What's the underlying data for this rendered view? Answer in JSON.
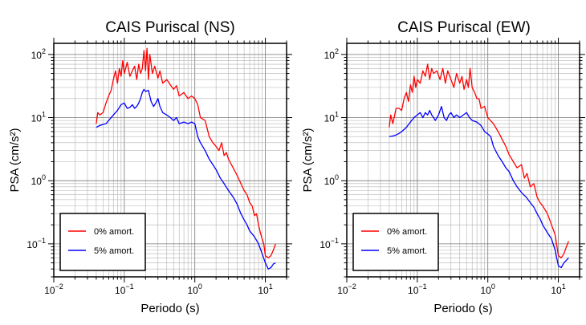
{
  "chart_data": [
    {
      "type": "line",
      "title": "CAIS Puriscal (NS)",
      "xlabel": "Periodo (s)",
      "ylabel": "PSA (cm/s²)",
      "xscale": "log",
      "yscale": "log",
      "xlim": [
        0.01,
        20
      ],
      "ylim": [
        0.03,
        150
      ],
      "x_ticks": [
        {
          "value": 0.01,
          "base": "10",
          "exp": "−2"
        },
        {
          "value": 0.1,
          "base": "10",
          "exp": "−1"
        },
        {
          "value": 1,
          "base": "10",
          "exp": "0"
        },
        {
          "value": 10,
          "base": "10",
          "exp": "1"
        }
      ],
      "y_ticks": [
        {
          "value": 0.1,
          "base": "10",
          "exp": "−1"
        },
        {
          "value": 1,
          "base": "10",
          "exp": "0"
        },
        {
          "value": 10,
          "base": "10",
          "exp": "1"
        },
        {
          "value": 100,
          "base": "10",
          "exp": "2"
        }
      ],
      "grid": true,
      "legend_position": "bottom-left",
      "series": [
        {
          "name": "0% amort.",
          "color": "#ff0000",
          "points": [
            [
              0.04,
              8
            ],
            [
              0.042,
              12
            ],
            [
              0.045,
              11
            ],
            [
              0.05,
              12
            ],
            [
              0.055,
              17
            ],
            [
              0.06,
              22
            ],
            [
              0.065,
              27
            ],
            [
              0.07,
              40
            ],
            [
              0.075,
              55
            ],
            [
              0.08,
              35
            ],
            [
              0.085,
              60
            ],
            [
              0.09,
              45
            ],
            [
              0.095,
              80
            ],
            [
              0.1,
              50
            ],
            [
              0.11,
              75
            ],
            [
              0.12,
              45
            ],
            [
              0.13,
              55
            ],
            [
              0.14,
              65
            ],
            [
              0.15,
              40
            ],
            [
              0.16,
              70
            ],
            [
              0.17,
              50
            ],
            [
              0.18,
              60
            ],
            [
              0.19,
              115
            ],
            [
              0.2,
              55
            ],
            [
              0.21,
              125
            ],
            [
              0.22,
              40
            ],
            [
              0.23,
              100
            ],
            [
              0.25,
              50
            ],
            [
              0.27,
              65
            ],
            [
              0.3,
              42
            ],
            [
              0.32,
              55
            ],
            [
              0.35,
              35
            ],
            [
              0.4,
              40
            ],
            [
              0.45,
              33
            ],
            [
              0.5,
              28
            ],
            [
              0.55,
              32
            ],
            [
              0.6,
              22
            ],
            [
              0.7,
              25
            ],
            [
              0.8,
              20
            ],
            [
              0.9,
              22
            ],
            [
              1.0,
              20
            ],
            [
              1.1,
              16
            ],
            [
              1.2,
              10
            ],
            [
              1.4,
              9
            ],
            [
              1.6,
              5
            ],
            [
              1.8,
              4
            ],
            [
              2.0,
              3.5
            ],
            [
              2.2,
              3
            ],
            [
              2.4,
              4
            ],
            [
              2.6,
              2.5
            ],
            [
              2.8,
              2.8
            ],
            [
              3.0,
              2.2
            ],
            [
              3.3,
              1.8
            ],
            [
              3.6,
              1.5
            ],
            [
              4.0,
              1.2
            ],
            [
              4.5,
              0.9
            ],
            [
              5,
              0.7
            ],
            [
              5.5,
              0.6
            ],
            [
              6,
              0.45
            ],
            [
              6.5,
              0.4
            ],
            [
              7,
              0.28
            ],
            [
              7.5,
              0.3
            ],
            [
              8,
              0.2
            ],
            [
              8.5,
              0.15
            ],
            [
              9,
              0.12
            ],
            [
              9.5,
              0.1
            ],
            [
              10,
              0.065
            ],
            [
              11,
              0.06
            ],
            [
              12,
              0.065
            ],
            [
              13,
              0.08
            ],
            [
              14,
              0.1
            ]
          ]
        },
        {
          "name": "5% amort.",
          "color": "#0000ff",
          "points": [
            [
              0.04,
              7
            ],
            [
              0.045,
              7.5
            ],
            [
              0.05,
              7.8
            ],
            [
              0.055,
              8
            ],
            [
              0.06,
              9
            ],
            [
              0.065,
              10
            ],
            [
              0.07,
              11
            ],
            [
              0.08,
              13
            ],
            [
              0.09,
              16
            ],
            [
              0.1,
              17
            ],
            [
              0.11,
              14
            ],
            [
              0.12,
              14.5
            ],
            [
              0.13,
              16
            ],
            [
              0.14,
              14
            ],
            [
              0.15,
              15
            ],
            [
              0.16,
              17
            ],
            [
              0.17,
              20
            ],
            [
              0.18,
              25
            ],
            [
              0.19,
              28
            ],
            [
              0.2,
              26
            ],
            [
              0.22,
              27
            ],
            [
              0.24,
              18
            ],
            [
              0.26,
              15
            ],
            [
              0.28,
              17
            ],
            [
              0.3,
              20
            ],
            [
              0.32,
              15
            ],
            [
              0.35,
              12
            ],
            [
              0.4,
              11
            ],
            [
              0.45,
              10
            ],
            [
              0.5,
              9
            ],
            [
              0.55,
              10
            ],
            [
              0.6,
              8
            ],
            [
              0.7,
              8.5
            ],
            [
              0.8,
              8
            ],
            [
              0.9,
              8.5
            ],
            [
              1.0,
              8
            ],
            [
              1.1,
              5
            ],
            [
              1.2,
              4
            ],
            [
              1.4,
              3
            ],
            [
              1.6,
              2.2
            ],
            [
              1.8,
              1.8
            ],
            [
              2.0,
              1.5
            ],
            [
              2.3,
              1.1
            ],
            [
              2.6,
              0.9
            ],
            [
              3.0,
              0.7
            ],
            [
              3.5,
              0.55
            ],
            [
              4.0,
              0.42
            ],
            [
              4.5,
              0.3
            ],
            [
              5,
              0.24
            ],
            [
              5.5,
              0.2
            ],
            [
              6,
              0.16
            ],
            [
              7,
              0.13
            ],
            [
              8,
              0.1
            ],
            [
              9,
              0.07
            ],
            [
              10,
              0.05
            ],
            [
              11,
              0.04
            ],
            [
              12,
              0.042
            ],
            [
              13,
              0.048
            ],
            [
              14,
              0.05
            ]
          ]
        }
      ]
    },
    {
      "type": "line",
      "title": "CAIS Puriscal (EW)",
      "xlabel": "Periodo (s)",
      "ylabel": "PSA (cm/s²)",
      "xscale": "log",
      "yscale": "log",
      "xlim": [
        0.01,
        20
      ],
      "ylim": [
        0.03,
        150
      ],
      "x_ticks": [
        {
          "value": 0.01,
          "base": "10",
          "exp": "−2"
        },
        {
          "value": 0.1,
          "base": "10",
          "exp": "−1"
        },
        {
          "value": 1,
          "base": "10",
          "exp": "0"
        },
        {
          "value": 10,
          "base": "10",
          "exp": "1"
        }
      ],
      "y_ticks": [
        {
          "value": 0.1,
          "base": "10",
          "exp": "−1"
        },
        {
          "value": 1,
          "base": "10",
          "exp": "0"
        },
        {
          "value": 10,
          "base": "10",
          "exp": "1"
        },
        {
          "value": 100,
          "base": "10",
          "exp": "2"
        }
      ],
      "grid": true,
      "legend_position": "bottom-left",
      "series": [
        {
          "name": "0% amort.",
          "color": "#ff0000",
          "points": [
            [
              0.04,
              7
            ],
            [
              0.042,
              11
            ],
            [
              0.045,
              8
            ],
            [
              0.05,
              14
            ],
            [
              0.055,
              14
            ],
            [
              0.06,
              13
            ],
            [
              0.065,
              20
            ],
            [
              0.07,
              25
            ],
            [
              0.075,
              18
            ],
            [
              0.08,
              33
            ],
            [
              0.085,
              25
            ],
            [
              0.09,
              45
            ],
            [
              0.095,
              30
            ],
            [
              0.1,
              40
            ],
            [
              0.11,
              35
            ],
            [
              0.12,
              55
            ],
            [
              0.13,
              45
            ],
            [
              0.14,
              70
            ],
            [
              0.15,
              40
            ],
            [
              0.16,
              60
            ],
            [
              0.17,
              50
            ],
            [
              0.19,
              55
            ],
            [
              0.21,
              40
            ],
            [
              0.23,
              60
            ],
            [
              0.25,
              35
            ],
            [
              0.27,
              55
            ],
            [
              0.3,
              40
            ],
            [
              0.33,
              30
            ],
            [
              0.36,
              50
            ],
            [
              0.4,
              35
            ],
            [
              0.43,
              45
            ],
            [
              0.46,
              28
            ],
            [
              0.5,
              40
            ],
            [
              0.53,
              30
            ],
            [
              0.56,
              60
            ],
            [
              0.6,
              30
            ],
            [
              0.65,
              25
            ],
            [
              0.7,
              20
            ],
            [
              0.75,
              20
            ],
            [
              0.8,
              14
            ],
            [
              0.9,
              15
            ],
            [
              1.0,
              10
            ],
            [
              1.2,
              8
            ],
            [
              1.4,
              6
            ],
            [
              1.6,
              4.5
            ],
            [
              1.8,
              3.5
            ],
            [
              2.0,
              2.6
            ],
            [
              2.3,
              2.0
            ],
            [
              2.6,
              1.6
            ],
            [
              3.0,
              1.8
            ],
            [
              3.3,
              1.1
            ],
            [
              3.6,
              1.3
            ],
            [
              4.0,
              0.8
            ],
            [
              4.5,
              0.9
            ],
            [
              5.0,
              0.55
            ],
            [
              5.5,
              0.45
            ],
            [
              6,
              0.4
            ],
            [
              7,
              0.3
            ],
            [
              8,
              0.2
            ],
            [
              9,
              0.14
            ],
            [
              10,
              0.065
            ],
            [
              11,
              0.06
            ],
            [
              12,
              0.07
            ],
            [
              13,
              0.09
            ],
            [
              14,
              0.11
            ]
          ]
        },
        {
          "name": "5% amort.",
          "color": "#0000ff",
          "points": [
            [
              0.04,
              5
            ],
            [
              0.045,
              5.1
            ],
            [
              0.05,
              5.3
            ],
            [
              0.055,
              5.6
            ],
            [
              0.06,
              6
            ],
            [
              0.07,
              7
            ],
            [
              0.08,
              8.5
            ],
            [
              0.09,
              10
            ],
            [
              0.1,
              11
            ],
            [
              0.11,
              12
            ],
            [
              0.12,
              10
            ],
            [
              0.13,
              12
            ],
            [
              0.14,
              11
            ],
            [
              0.15,
              13
            ],
            [
              0.16,
              11
            ],
            [
              0.17,
              10
            ],
            [
              0.18,
              9
            ],
            [
              0.2,
              11
            ],
            [
              0.22,
              15
            ],
            [
              0.24,
              10
            ],
            [
              0.26,
              9
            ],
            [
              0.28,
              11
            ],
            [
              0.3,
              12
            ],
            [
              0.33,
              10
            ],
            [
              0.36,
              11
            ],
            [
              0.4,
              10
            ],
            [
              0.45,
              11
            ],
            [
              0.5,
              12
            ],
            [
              0.55,
              10
            ],
            [
              0.6,
              9
            ],
            [
              0.7,
              8.5
            ],
            [
              0.8,
              7.5
            ],
            [
              0.9,
              6
            ],
            [
              1.0,
              5.5
            ],
            [
              1.1,
              5
            ],
            [
              1.2,
              3.5
            ],
            [
              1.4,
              2.5
            ],
            [
              1.6,
              2
            ],
            [
              1.8,
              1.6
            ],
            [
              2.0,
              1.4
            ],
            [
              2.3,
              1.0
            ],
            [
              2.6,
              0.8
            ],
            [
              3.0,
              0.65
            ],
            [
              3.5,
              0.55
            ],
            [
              4.0,
              0.45
            ],
            [
              4.5,
              0.38
            ],
            [
              5.0,
              0.3
            ],
            [
              5.5,
              0.25
            ],
            [
              6,
              0.2
            ],
            [
              7,
              0.15
            ],
            [
              8,
              0.12
            ],
            [
              9,
              0.08
            ],
            [
              10,
              0.045
            ],
            [
              11,
              0.042
            ],
            [
              12,
              0.05
            ],
            [
              13,
              0.055
            ],
            [
              14,
              0.06
            ]
          ]
        }
      ]
    }
  ]
}
